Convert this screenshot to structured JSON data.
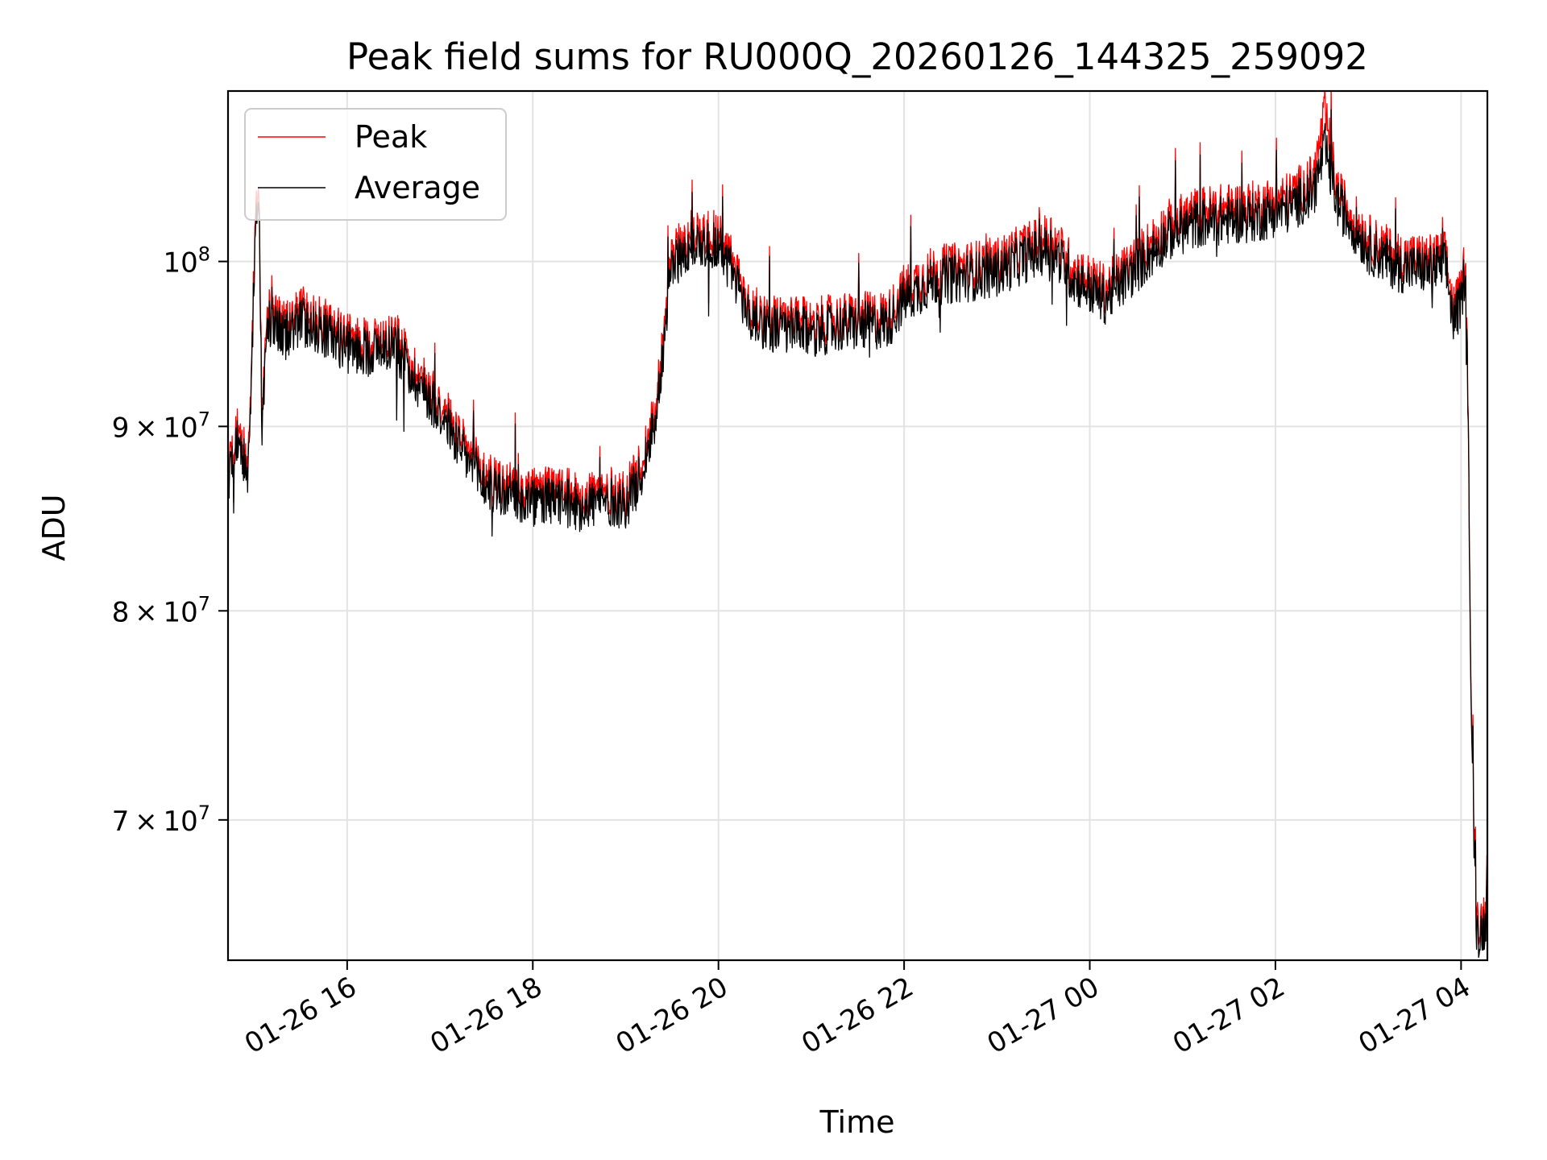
{
  "chart_data": {
    "type": "line",
    "title": "Peak field sums for RU000Q_20260126_144325_259092",
    "xlabel": "Time",
    "ylabel": "ADU",
    "x_scale": "time",
    "y_scale": "log",
    "xlim": [
      "2026-01-26T14:43",
      "2026-01-27T04:17"
    ],
    "ylim": [
      64000000,
      111500000
    ],
    "grid": true,
    "legend_position": "upper left",
    "x_ticks": [
      {
        "value": "2026-01-26T16:00",
        "label": "01-26 16"
      },
      {
        "value": "2026-01-26T18:00",
        "label": "01-26 18"
      },
      {
        "value": "2026-01-26T20:00",
        "label": "01-26 20"
      },
      {
        "value": "2026-01-26T22:00",
        "label": "01-26 22"
      },
      {
        "value": "2026-01-27T00:00",
        "label": "01-27 00"
      },
      {
        "value": "2026-01-27T02:00",
        "label": "01-27 02"
      },
      {
        "value": "2026-01-27T04:00",
        "label": "01-27 04"
      }
    ],
    "y_ticks": [
      {
        "value": 70000000,
        "base": "7",
        "exp": "7",
        "kind": "mult"
      },
      {
        "value": 80000000,
        "base": "8",
        "exp": "7",
        "kind": "mult"
      },
      {
        "value": 90000000,
        "base": "9",
        "exp": "7",
        "kind": "mult"
      },
      {
        "value": 100000000,
        "base": "10",
        "exp": "8",
        "kind": "pow"
      }
    ],
    "series": [
      {
        "name": "Peak",
        "color": "#ff0000",
        "x": [
          "2026-01-26T14:43",
          "2026-01-26T14:50",
          "2026-01-26T14:56",
          "2026-01-26T15:01",
          "2026-01-26T15:03",
          "2026-01-26T15:05",
          "2026-01-26T15:08",
          "2026-01-26T15:12",
          "2026-01-26T15:20",
          "2026-01-26T15:30",
          "2026-01-26T15:45",
          "2026-01-26T16:00",
          "2026-01-26T16:15",
          "2026-01-26T16:30",
          "2026-01-26T16:45",
          "2026-01-26T17:00",
          "2026-01-26T17:15",
          "2026-01-26T17:30",
          "2026-01-26T17:45",
          "2026-01-26T18:00",
          "2026-01-26T18:15",
          "2026-01-26T18:30",
          "2026-01-26T18:45",
          "2026-01-26T19:00",
          "2026-01-26T19:10",
          "2026-01-26T19:20",
          "2026-01-26T19:30",
          "2026-01-26T19:45",
          "2026-01-26T20:00",
          "2026-01-26T20:10",
          "2026-01-26T20:20",
          "2026-01-26T20:40",
          "2026-01-26T21:00",
          "2026-01-26T21:20",
          "2026-01-26T21:40",
          "2026-01-26T21:50",
          "2026-01-26T22:00",
          "2026-01-26T22:20",
          "2026-01-26T22:40",
          "2026-01-26T23:00",
          "2026-01-26T23:20",
          "2026-01-26T23:35",
          "2026-01-26T23:50",
          "2026-01-27T00:10",
          "2026-01-27T00:30",
          "2026-01-27T00:50",
          "2026-01-27T01:10",
          "2026-01-27T01:30",
          "2026-01-27T01:50",
          "2026-01-27T02:10",
          "2026-01-27T02:25",
          "2026-01-27T02:32",
          "2026-01-27T02:40",
          "2026-01-27T03:00",
          "2026-01-27T03:20",
          "2026-01-27T03:40",
          "2026-01-27T03:50",
          "2026-01-27T03:55",
          "2026-01-27T04:00",
          "2026-01-27T04:03",
          "2026-01-27T04:05",
          "2026-01-27T04:06",
          "2026-01-27T04:08",
          "2026-01-27T04:10",
          "2026-01-27T04:12",
          "2026-01-27T04:17"
        ],
        "values": [
          87500000,
          90500000,
          87500000,
          103000000,
          105000000,
          90000000,
          97000000,
          96500000,
          96000000,
          97000000,
          96200000,
          95200000,
          95000000,
          95500000,
          93200000,
          91500000,
          89000000,
          87200000,
          86600000,
          86300000,
          86400000,
          86100000,
          86400000,
          86200000,
          87800000,
          91500000,
          100500000,
          102000000,
          101800000,
          99800000,
          97000000,
          96300000,
          96200000,
          96500000,
          96600000,
          96700000,
          98300000,
          99500000,
          99700000,
          100000000,
          101000000,
          101700000,
          99500000,
          98300000,
          100200000,
          102400000,
          103300000,
          103500000,
          103700000,
          104300000,
          105500000,
          110000000,
          104500000,
          101500000,
          100300000,
          100200000,
          100400000,
          97000000,
          98000000,
          100700000,
          88500000,
          78000000,
          70500000,
          66000000,
          65500000,
          66200000
        ]
      },
      {
        "name": "Average",
        "color": "#000000",
        "x": [
          "2026-01-26T14:43",
          "2026-01-26T14:50",
          "2026-01-26T14:56",
          "2026-01-26T15:01",
          "2026-01-26T15:03",
          "2026-01-26T15:05",
          "2026-01-26T15:08",
          "2026-01-26T15:12",
          "2026-01-26T15:20",
          "2026-01-26T15:30",
          "2026-01-26T15:45",
          "2026-01-26T16:00",
          "2026-01-26T16:15",
          "2026-01-26T16:30",
          "2026-01-26T16:45",
          "2026-01-26T17:00",
          "2026-01-26T17:15",
          "2026-01-26T17:30",
          "2026-01-26T17:45",
          "2026-01-26T18:00",
          "2026-01-26T18:15",
          "2026-01-26T18:30",
          "2026-01-26T18:45",
          "2026-01-26T19:00",
          "2026-01-26T19:10",
          "2026-01-26T19:20",
          "2026-01-26T19:30",
          "2026-01-26T19:45",
          "2026-01-26T20:00",
          "2026-01-26T20:10",
          "2026-01-26T20:20",
          "2026-01-26T20:40",
          "2026-01-26T21:00",
          "2026-01-26T21:20",
          "2026-01-26T21:40",
          "2026-01-26T21:50",
          "2026-01-26T22:00",
          "2026-01-26T22:20",
          "2026-01-26T22:40",
          "2026-01-26T23:00",
          "2026-01-26T23:20",
          "2026-01-26T23:35",
          "2026-01-26T23:50",
          "2026-01-27T00:10",
          "2026-01-27T00:30",
          "2026-01-27T00:50",
          "2026-01-27T01:10",
          "2026-01-27T01:30",
          "2026-01-27T01:50",
          "2026-01-27T02:10",
          "2026-01-27T02:25",
          "2026-01-27T02:32",
          "2026-01-27T02:40",
          "2026-01-27T03:00",
          "2026-01-27T03:20",
          "2026-01-27T03:40",
          "2026-01-27T03:50",
          "2026-01-27T03:55",
          "2026-01-27T04:00",
          "2026-01-27T04:03",
          "2026-01-27T04:05",
          "2026-01-27T04:06",
          "2026-01-27T04:08",
          "2026-01-27T04:10",
          "2026-01-27T04:12",
          "2026-01-27T04:17"
        ],
        "values": [
          87000000,
          89800000,
          86900000,
          102200000,
          104100000,
          89400000,
          96300000,
          95800000,
          95400000,
          96300000,
          95600000,
          94600000,
          94400000,
          94900000,
          92600000,
          90900000,
          88400000,
          86600000,
          86000000,
          85700000,
          85800000,
          85500000,
          85800000,
          85600000,
          87200000,
          90800000,
          99800000,
          101200000,
          101000000,
          99100000,
          96400000,
          95700000,
          95600000,
          95900000,
          96000000,
          96100000,
          97600000,
          98800000,
          99000000,
          99300000,
          100300000,
          100900000,
          98800000,
          97600000,
          99500000,
          101600000,
          102500000,
          102700000,
          102900000,
          103500000,
          104600000,
          107500000,
          103800000,
          100800000,
          99600000,
          99500000,
          99700000,
          96300000,
          97300000,
          99900000,
          88000000,
          77500000,
          70000000,
          65400000,
          65000000,
          65700000
        ]
      }
    ]
  }
}
